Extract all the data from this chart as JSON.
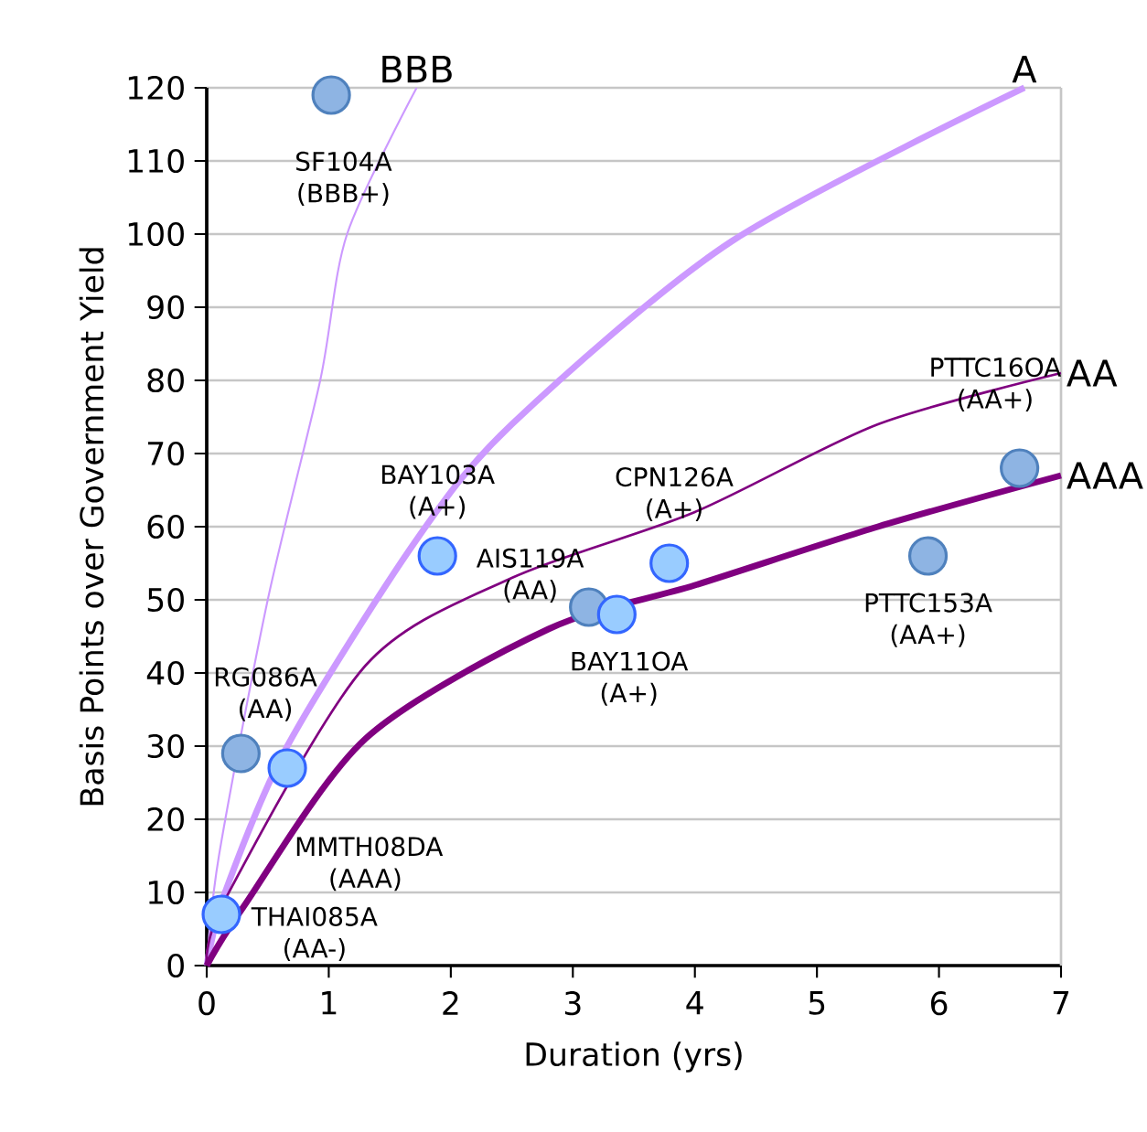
{
  "chart_data": {
    "type": "scatter",
    "xlabel": "Duration (yrs)",
    "ylabel": "Basis Points over Government Yield",
    "xlim": [
      0,
      7
    ],
    "ylim": [
      0,
      120
    ],
    "xticks": [
      0,
      1,
      2,
      3,
      4,
      5,
      6,
      7
    ],
    "yticks": [
      0,
      10,
      20,
      30,
      40,
      50,
      60,
      70,
      80,
      90,
      100,
      110,
      120
    ],
    "grid": "y",
    "series": [
      {
        "color": "#8eb4e3",
        "marker": "circle",
        "x": [
          1.02,
          3.13,
          0.28,
          5.91,
          6.66
        ],
        "values": [
          119,
          49,
          29,
          56,
          68
        ]
      },
      {
        "color": "#99ccff",
        "marker": "circle",
        "x": [
          1.89,
          3.36,
          3.79,
          0.66,
          0.12
        ],
        "values": [
          56,
          48,
          55,
          27,
          7
        ]
      },
      {
        "name": "BBB",
        "type": "line",
        "marker": "none",
        "color": "#cc99ff",
        "x": [
          0,
          0.1,
          0.5,
          0.93,
          1.15,
          1.72
        ],
        "values": [
          0,
          15,
          50,
          80,
          100,
          120
        ]
      },
      {
        "name": "A",
        "type": "line",
        "marker": "none",
        "color": "#cc99ff",
        "x": [
          0,
          0.15,
          0.66,
          1.71,
          2.5,
          4.3,
          6.7
        ],
        "values": [
          0,
          10,
          30,
          58,
          74,
          99,
          120
        ]
      },
      {
        "name": "AA",
        "type": "line",
        "marker": "none",
        "color": "#800080",
        "x": [
          0,
          0.15,
          1.3,
          2.5,
          4.0,
          5.5,
          7
        ],
        "values": [
          0,
          9,
          41,
          53,
          62,
          74,
          81
        ]
      },
      {
        "name": "AAA",
        "type": "line",
        "marker": "none",
        "color": "#800080",
        "x": [
          0,
          0.3,
          1.3,
          2.8,
          4.0,
          5.5,
          7
        ],
        "values": [
          0,
          8,
          31,
          46,
          52,
          60,
          67
        ]
      }
    ],
    "annotations": [
      {
        "text": "SF104A (BBB+)",
        "x": 1.02,
        "y": 119
      },
      {
        "text": "AIS119A (AA)",
        "x": 3.13,
        "y": 49
      },
      {
        "text": "RG086A (AA)",
        "x": 0.28,
        "y": 29
      },
      {
        "text": "PTTC153A (AA+)",
        "x": 5.91,
        "y": 56
      },
      {
        "text": "PTTC16OA (AA+)",
        "x": 6.66,
        "y": 68
      },
      {
        "text": "BAY103A (A+)",
        "x": 1.89,
        "y": 56
      },
      {
        "text": "BAY11OA (A+)",
        "x": 3.36,
        "y": 48
      },
      {
        "text": "CPN126A (A+)",
        "x": 3.79,
        "y": 55
      },
      {
        "text": "MMTH08DA (AAA)",
        "x": 0.66,
        "y": 27
      },
      {
        "text": "THAI085A (AA-)",
        "x": 0.12,
        "y": 7
      }
    ]
  }
}
